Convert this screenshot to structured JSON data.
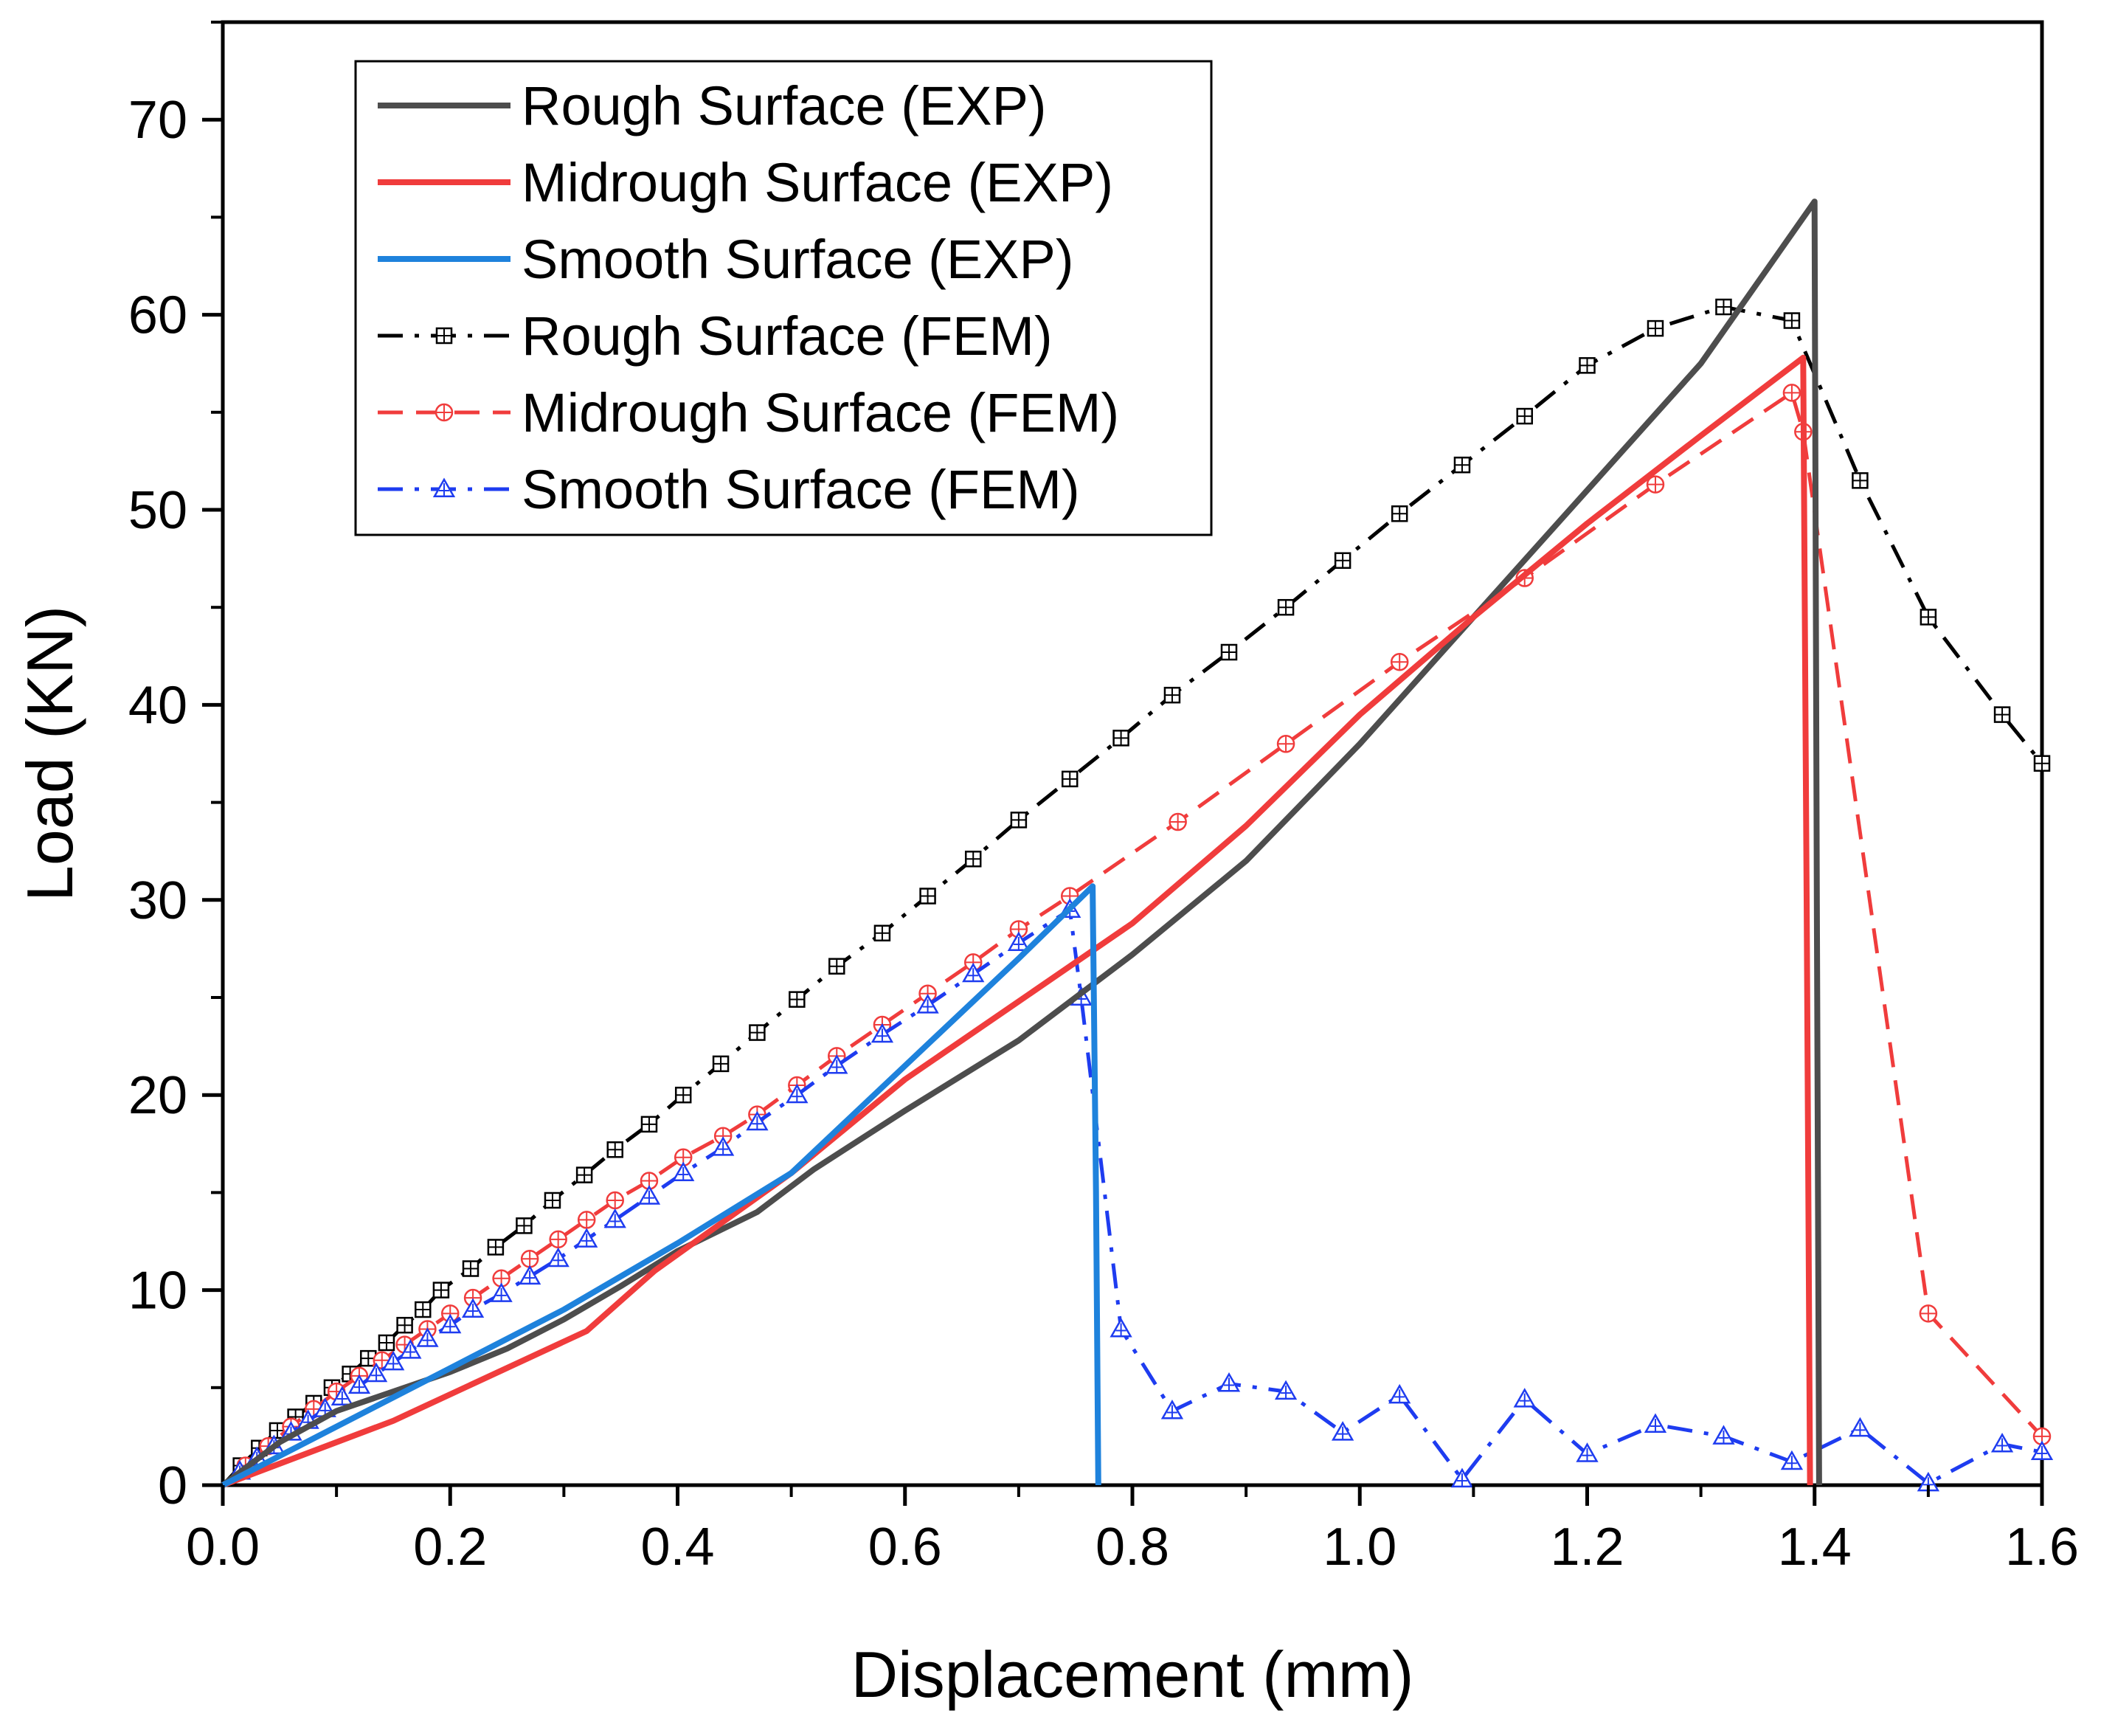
{
  "chart_data": {
    "type": "line",
    "title": "",
    "xlabel": "Displacement (mm)",
    "ylabel": "Load (KN)",
    "xlim": [
      0,
      1.6
    ],
    "ylim": [
      0,
      75
    ],
    "xticks": [
      0.0,
      0.2,
      0.4,
      0.6,
      0.8,
      1.0,
      1.2,
      1.4,
      1.6
    ],
    "xtick_labels": [
      "0.0",
      "0.2",
      "0.4",
      "0.6",
      "0.8",
      "1.0",
      "1.2",
      "1.4",
      "1.6"
    ],
    "yticks": [
      0,
      10,
      20,
      30,
      40,
      50,
      60,
      70
    ],
    "ytick_labels": [
      "0",
      "10",
      "20",
      "30",
      "40",
      "50",
      "60",
      "70"
    ],
    "grid": false,
    "legend_position": "top-left",
    "series": [
      {
        "name": "Rough Surface (EXP)",
        "color": "#4d4d4d",
        "style": "solid",
        "marker": "none",
        "x": [
          0,
          0.05,
          0.1,
          0.2,
          0.25,
          0.3,
          0.35,
          0.4,
          0.47,
          0.52,
          0.6,
          0.7,
          0.8,
          0.9,
          1.0,
          1.1,
          1.2,
          1.3,
          1.4,
          1.402,
          1.404
        ],
        "y": [
          0,
          2.2,
          3.8,
          5.8,
          7.0,
          8.5,
          10.2,
          12.0,
          14.0,
          16.2,
          19.2,
          22.8,
          27.2,
          32.0,
          38.0,
          44.5,
          51.0,
          57.5,
          65.8,
          30.0,
          0
        ]
      },
      {
        "name": "Midrough Surface (EXP)",
        "color": "#f03c3c",
        "style": "solid",
        "marker": "none",
        "x": [
          0,
          0.15,
          0.32,
          0.38,
          0.5,
          0.6,
          0.7,
          0.8,
          0.9,
          1.0,
          1.1,
          1.2,
          1.3,
          1.39,
          1.393,
          1.396
        ],
        "y": [
          0,
          3.3,
          7.9,
          11.0,
          16.0,
          20.8,
          24.8,
          28.8,
          33.8,
          39.5,
          44.5,
          49.3,
          53.8,
          57.8,
          30.0,
          0
        ]
      },
      {
        "name": "Smooth Surface (EXP)",
        "color": "#1e82dc",
        "style": "solid",
        "marker": "none",
        "x": [
          0,
          0.1,
          0.2,
          0.3,
          0.4,
          0.5,
          0.6,
          0.7,
          0.765,
          0.768,
          0.77
        ],
        "y": [
          0,
          3.0,
          6.0,
          9.0,
          12.4,
          16.0,
          21.5,
          27.0,
          30.7,
          15.0,
          0
        ]
      },
      {
        "name": "Rough Surface (FEM)",
        "color": "#000000",
        "style": "dashdot",
        "marker": "square",
        "x": [
          0,
          0.016,
          0.032,
          0.048,
          0.064,
          0.08,
          0.096,
          0.112,
          0.128,
          0.144,
          0.16,
          0.176,
          0.192,
          0.218,
          0.24,
          0.265,
          0.29,
          0.318,
          0.345,
          0.375,
          0.405,
          0.438,
          0.47,
          0.505,
          0.54,
          0.58,
          0.62,
          0.66,
          0.7,
          0.745,
          0.79,
          0.835,
          0.885,
          0.935,
          0.985,
          1.035,
          1.09,
          1.145,
          1.2,
          1.26,
          1.32,
          1.38,
          1.44,
          1.5,
          1.565,
          1.6
        ],
        "y": [
          0,
          1.0,
          1.9,
          2.8,
          3.5,
          4.2,
          5.0,
          5.7,
          6.5,
          7.3,
          8.2,
          9.0,
          10.0,
          11.1,
          12.2,
          13.3,
          14.6,
          15.9,
          17.2,
          18.5,
          20.0,
          21.6,
          23.2,
          24.9,
          26.6,
          28.3,
          30.2,
          32.1,
          34.1,
          36.2,
          38.3,
          40.5,
          42.7,
          45.0,
          47.4,
          49.8,
          52.3,
          54.8,
          57.4,
          59.3,
          60.4,
          59.7,
          51.5,
          44.5,
          39.5,
          37.0
        ]
      },
      {
        "name": "Midrough Surface (FEM)",
        "color": "#f03c3c",
        "style": "dashed",
        "marker": "circle",
        "x": [
          0,
          0.02,
          0.04,
          0.06,
          0.08,
          0.1,
          0.12,
          0.14,
          0.16,
          0.18,
          0.2,
          0.22,
          0.245,
          0.27,
          0.295,
          0.32,
          0.345,
          0.375,
          0.405,
          0.44,
          0.47,
          0.505,
          0.54,
          0.58,
          0.62,
          0.66,
          0.7,
          0.745,
          0.84,
          0.935,
          1.035,
          1.145,
          1.26,
          1.38,
          1.39,
          1.5,
          1.6
        ],
        "y": [
          0,
          1.0,
          2.0,
          3.0,
          3.9,
          4.8,
          5.6,
          6.4,
          7.2,
          8.0,
          8.8,
          9.6,
          10.6,
          11.6,
          12.6,
          13.6,
          14.6,
          15.6,
          16.8,
          17.9,
          19.0,
          20.5,
          22.0,
          23.6,
          25.2,
          26.8,
          28.5,
          30.2,
          34.0,
          38.0,
          42.2,
          46.5,
          51.3,
          56.0,
          54.0,
          8.8,
          2.5
        ]
      },
      {
        "name": "Smooth Surface (FEM)",
        "color": "#1e3cf0",
        "style": "dashdot",
        "marker": "triangle",
        "x": [
          0,
          0.015,
          0.03,
          0.045,
          0.06,
          0.075,
          0.09,
          0.105,
          0.12,
          0.135,
          0.15,
          0.165,
          0.18,
          0.2,
          0.22,
          0.245,
          0.27,
          0.295,
          0.32,
          0.345,
          0.375,
          0.405,
          0.44,
          0.47,
          0.505,
          0.54,
          0.58,
          0.62,
          0.66,
          0.7,
          0.745,
          0.755,
          0.79,
          0.835,
          0.885,
          0.935,
          0.985,
          1.035,
          1.09,
          1.145,
          1.2,
          1.26,
          1.32,
          1.38,
          1.44,
          1.5,
          1.565,
          1.6
        ],
        "y": [
          0,
          0.7,
          1.4,
          2.0,
          2.7,
          3.3,
          3.9,
          4.5,
          5.1,
          5.7,
          6.3,
          6.9,
          7.5,
          8.2,
          9.0,
          9.8,
          10.7,
          11.6,
          12.6,
          13.6,
          14.8,
          16.0,
          17.3,
          18.6,
          20.0,
          21.5,
          23.1,
          24.6,
          26.2,
          27.8,
          29.5,
          25.0,
          8.0,
          3.8,
          5.2,
          4.8,
          2.7,
          4.6,
          0.3,
          4.4,
          1.6,
          3.1,
          2.5,
          1.2,
          2.9,
          0.1,
          2.1,
          1.7
        ]
      }
    ]
  }
}
